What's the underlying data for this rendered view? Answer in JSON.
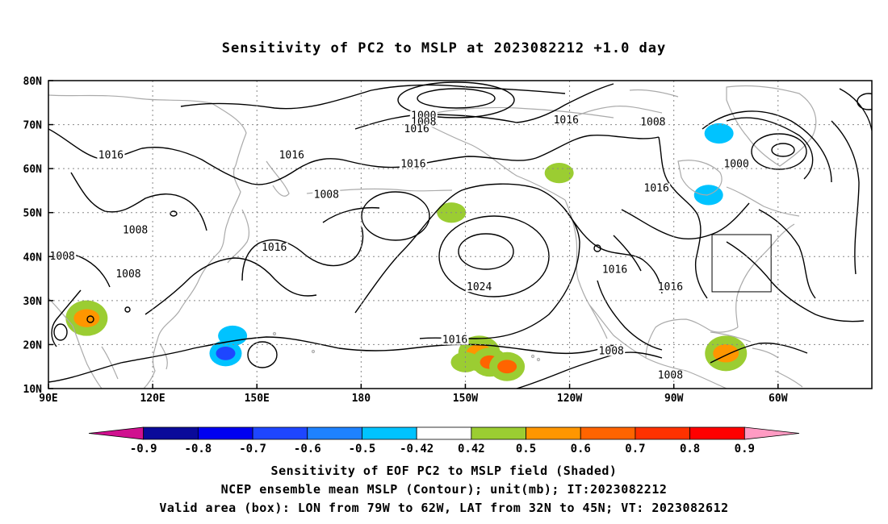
{
  "title": "Sensitivity of PC2 to MSLP at 2023082212 +1.0 day",
  "map": {
    "lat_labels": [
      "80N",
      "70N",
      "60N",
      "50N",
      "40N",
      "30N",
      "20N",
      "10N"
    ],
    "lon_labels": [
      "90E",
      "120E",
      "150E",
      "180",
      "150W",
      "120W",
      "90W",
      "60W"
    ],
    "contour_labels": [
      {
        "text": "1000",
        "lon": 198,
        "lat": 71.5
      },
      {
        "text": "1008",
        "lon": 198,
        "lat": 70
      },
      {
        "text": "1016",
        "lon": 196,
        "lat": 68.5
      },
      {
        "text": "1016",
        "lon": 108,
        "lat": 62.5
      },
      {
        "text": "1016",
        "lon": 160,
        "lat": 62.5
      },
      {
        "text": "1016",
        "lon": 195,
        "lat": 60.5
      },
      {
        "text": "1016",
        "lon": 239,
        "lat": 70.5
      },
      {
        "text": "1008",
        "lon": 264,
        "lat": 70
      },
      {
        "text": "1000",
        "lon": 288,
        "lat": 60.5
      },
      {
        "text": "1016",
        "lon": 265,
        "lat": 55
      },
      {
        "text": "1008",
        "lon": 170,
        "lat": 53.5
      },
      {
        "text": "1008",
        "lon": 115,
        "lat": 45.5
      },
      {
        "text": "1016",
        "lon": 155,
        "lat": 41.5
      },
      {
        "text": "1008",
        "lon": 94,
        "lat": 39.5
      },
      {
        "text": "1008",
        "lon": 113,
        "lat": 35.5
      },
      {
        "text": "1024",
        "lon": 214,
        "lat": 32.5
      },
      {
        "text": "1016",
        "lon": 253,
        "lat": 36.5
      },
      {
        "text": "1016",
        "lon": 269,
        "lat": 32.5
      },
      {
        "text": "1016",
        "lon": 207,
        "lat": 20.5
      },
      {
        "text": "1008",
        "lon": 252,
        "lat": 18
      },
      {
        "text": "1008",
        "lon": 269,
        "lat": 12.5
      }
    ],
    "valid_box": {
      "lon_min": -79,
      "lon_max": -62,
      "lat_min": 32,
      "lat_max": 45
    },
    "shaded_sensitivity": [
      {
        "lon": 214,
        "lat": 18,
        "value": 0.6
      },
      {
        "lon": 217,
        "lat": 16,
        "value": 0.7
      },
      {
        "lon": 222,
        "lat": 15,
        "value": 0.7
      },
      {
        "lon": 210,
        "lat": 16,
        "value": 0.5
      },
      {
        "lon": 206,
        "lat": 50,
        "value": 0.5
      },
      {
        "lon": 237,
        "lat": 59,
        "value": 0.5
      },
      {
        "lon": 143,
        "lat": 22,
        "value": -0.5
      },
      {
        "lon": 141,
        "lat": 18,
        "value": -0.7
      },
      {
        "lon": 283,
        "lat": 68,
        "value": -0.5
      },
      {
        "lon": 280,
        "lat": 54,
        "value": -0.5
      },
      {
        "lon": 101,
        "lat": 26,
        "value": 0.6
      },
      {
        "lon": 285,
        "lat": 18,
        "value": 0.6
      }
    ]
  },
  "colorbar": {
    "colors": [
      "#d0108f",
      "#0a0a9a",
      "#0000f0",
      "#1e46ff",
      "#1e82ff",
      "#00c3ff",
      "#ffffff",
      "#9bcd32",
      "#ff9600",
      "#ff6400",
      "#ff3200",
      "#ff0000",
      "#ff9bc3"
    ],
    "labels": [
      "-0.9",
      "-0.8",
      "-0.7",
      "-0.6",
      "-0.5",
      "-0.42",
      "0.42",
      "0.5",
      "0.6",
      "0.7",
      "0.8",
      "0.9"
    ]
  },
  "captions": {
    "line1": "Sensitivity of EOF PC2 to MSLP field (Shaded)",
    "line2": "NCEP ensemble mean MSLP (Contour); unit(mb); IT:2023082212",
    "line3": "Valid area (box): LON from 79W to 62W, LAT from 32N to 45N; VT: 2023082612"
  }
}
